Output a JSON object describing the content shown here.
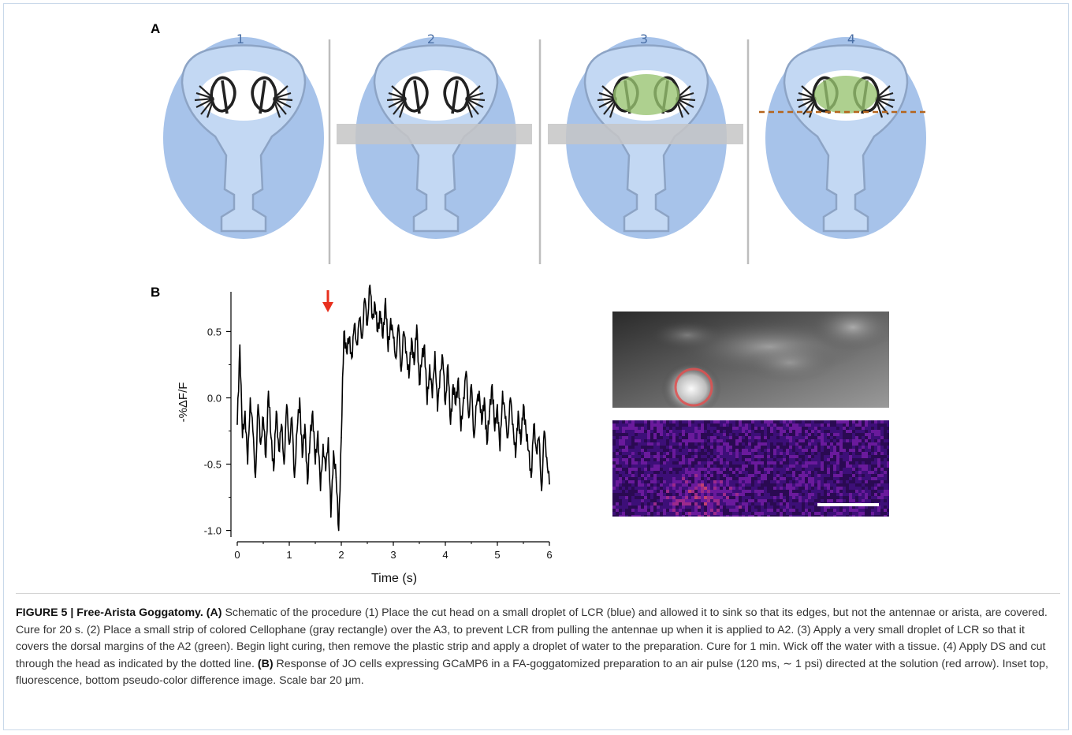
{
  "panel_a": {
    "label": "A",
    "steps": [
      "1",
      "2",
      "3",
      "4"
    ]
  },
  "panel_b": {
    "label": "B",
    "arrow_color": "#e8301e"
  },
  "chart_data": {
    "type": "line",
    "xlabel": "Time (s)",
    "ylabel": "-%ΔF/F",
    "xlim": [
      0,
      6
    ],
    "ylim": [
      -1.0,
      0.8
    ],
    "xticks": [
      "0",
      "1",
      "2",
      "3",
      "4",
      "5",
      "6"
    ],
    "yticks": [
      "0.5",
      "0.0",
      "-0.5",
      "-1.0"
    ],
    "annotation": "stimulus arrow at ~1.8 s",
    "series": [
      {
        "x": [
          0.0,
          0.05,
          0.1,
          0.15,
          0.2,
          0.25,
          0.3,
          0.35,
          0.4,
          0.45,
          0.5,
          0.55,
          0.6,
          0.65,
          0.7,
          0.75,
          0.8,
          0.85,
          0.9,
          0.95,
          1.0,
          1.05,
          1.1,
          1.15,
          1.2,
          1.25,
          1.3,
          1.35,
          1.4,
          1.45,
          1.5,
          1.55,
          1.6,
          1.65,
          1.7,
          1.75,
          1.8,
          1.85,
          1.9,
          1.95,
          2.0,
          2.05,
          2.1,
          2.15,
          2.2,
          2.25,
          2.3,
          2.35,
          2.4,
          2.45,
          2.5,
          2.55,
          2.6,
          2.65,
          2.7,
          2.75,
          2.8,
          2.85,
          2.9,
          2.95,
          3.0,
          3.05,
          3.1,
          3.15,
          3.2,
          3.25,
          3.3,
          3.35,
          3.4,
          3.45,
          3.5,
          3.55,
          3.6,
          3.65,
          3.7,
          3.75,
          3.8,
          3.85,
          3.9,
          3.95,
          4.0,
          4.05,
          4.1,
          4.15,
          4.2,
          4.25,
          4.3,
          4.35,
          4.4,
          4.45,
          4.5,
          4.55,
          4.6,
          4.65,
          4.7,
          4.75,
          4.8,
          4.85,
          4.9,
          4.95,
          5.0,
          5.05,
          5.1,
          5.15,
          5.2,
          5.25,
          5.3,
          5.35,
          5.4,
          5.45,
          5.5,
          5.55,
          5.6,
          5.65,
          5.7,
          5.75,
          5.8,
          5.85,
          5.9,
          5.95,
          6.0
        ],
        "values": [
          -0.2,
          0.4,
          -0.3,
          -0.1,
          -0.5,
          0.0,
          -0.25,
          -0.6,
          -0.05,
          -0.35,
          -0.15,
          -0.45,
          0.05,
          -0.3,
          -0.55,
          -0.1,
          -0.4,
          -0.2,
          -0.5,
          -0.05,
          -0.35,
          -0.15,
          -0.6,
          -0.25,
          0.0,
          -0.45,
          -0.2,
          -0.65,
          -0.3,
          -0.1,
          -0.5,
          -0.25,
          -0.7,
          -0.35,
          -0.55,
          -0.3,
          -0.9,
          -0.4,
          -0.6,
          -1.0,
          -0.3,
          0.5,
          0.35,
          0.45,
          0.3,
          0.55,
          0.4,
          0.6,
          0.45,
          0.75,
          0.55,
          0.85,
          0.6,
          0.7,
          0.5,
          0.65,
          0.45,
          0.75,
          0.35,
          0.6,
          0.45,
          0.3,
          0.55,
          0.2,
          0.5,
          0.35,
          0.15,
          0.45,
          0.25,
          0.55,
          0.1,
          0.3,
          0.4,
          -0.05,
          0.25,
          0.0,
          0.35,
          -0.1,
          0.2,
          0.3,
          -0.05,
          0.25,
          -0.2,
          0.1,
          -0.05,
          0.15,
          -0.25,
          0.0,
          0.2,
          -0.15,
          0.1,
          -0.3,
          -0.05,
          0.05,
          -0.2,
          0.0,
          -0.35,
          -0.1,
          0.1,
          -0.25,
          -0.05,
          -0.4,
          0.05,
          -0.15,
          -0.3,
          0.0,
          -0.2,
          -0.45,
          -0.1,
          -0.35,
          -0.05,
          -0.25,
          -0.4,
          -0.6,
          -0.2,
          -0.4,
          -0.3,
          -0.7,
          -0.25,
          -0.45,
          -0.65
        ]
      }
    ]
  },
  "inset": {
    "top_alt": "fluorescence",
    "bottom_alt": "pseudo-color difference image",
    "roi_color": "#e05050",
    "scalebar_color": "#ffffff"
  },
  "caption": {
    "figure_label": "FIGURE 5 | Free-Arista Goggatomy.",
    "a_label": "(A)",
    "a_text": "Schematic of the procedure (1) Place the cut head on a small droplet of LCR (blue) and allowed it to sink so that its edges, but not the antennae or arista, are covered. Cure for 20 s. (2) Place a small strip of colored Cellophane (gray rectangle) over the A3, to prevent LCR from pulling the antennae up when it is applied to A2. (3) Apply a very small droplet of LCR so that it covers the dorsal margins of the A2 (green). Begin light curing, then remove the plastic strip and apply a droplet of water to the preparation. Cure for 1 min. Wick off the water with a tissue. (4) Apply DS and cut through the head as indicated by the dotted line.",
    "b_label": "(B)",
    "b_text": "Response of JO cells expressing GCaMP6 in a FA-goggatomized preparation to an air pulse (120 ms, ∼ 1 psi) directed at the solution (red arrow). Inset top, fluorescence, bottom pseudo-color difference image. Scale bar 20 μm."
  }
}
